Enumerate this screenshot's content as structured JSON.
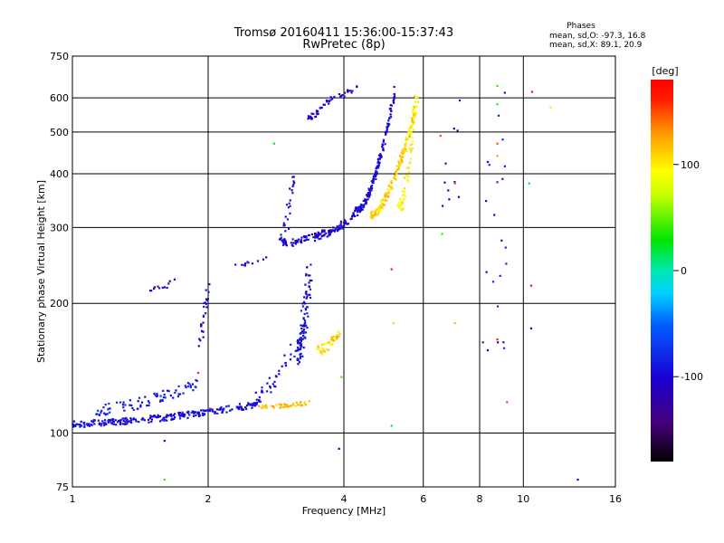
{
  "chart_data": {
    "type": "scatter",
    "title": "Tromsø 20160411 15:36:00-15:37:43",
    "subtitle": "RwPretec (8p)",
    "xlabel": "Frequency [MHz]",
    "ylabel": "Stationary phase Virtual Height [km]",
    "x_scale": "log",
    "y_scale": "log",
    "xlim": [
      1,
      16
    ],
    "ylim": [
      75,
      750
    ],
    "x_ticks": [
      "1",
      "2",
      "4",
      "6",
      "8",
      "10",
      "16"
    ],
    "y_ticks": [
      "75",
      "100",
      "200",
      "300",
      "400",
      "500",
      "600",
      "750"
    ],
    "grid": true,
    "phase_stats": {
      "heading": "Phases",
      "line_o": "mean, sd,O: -97.3, 16.8",
      "line_x": "mean, sd,X: 89.1, 20.9"
    },
    "colorbar": {
      "unit": "[deg]",
      "ticks": [
        "100",
        "0",
        "-100"
      ],
      "range": [
        -180,
        180
      ]
    },
    "segments": [
      {
        "x0": 1.0,
        "x1": 2.6,
        "y0": 105,
        "y1": 117,
        "spread": 0.035,
        "n": 260,
        "phase": -95
      },
      {
        "x0": 1.1,
        "x1": 1.9,
        "y0": 113,
        "y1": 130,
        "spread": 0.06,
        "n": 80,
        "phase": -85
      },
      {
        "x0": 1.9,
        "x1": 2.0,
        "y0": 160,
        "y1": 220,
        "spread": 0.05,
        "n": 25,
        "phase": -100
      },
      {
        "x0": 1.45,
        "x1": 1.7,
        "y0": 215,
        "y1": 225,
        "spread": 0.03,
        "n": 12,
        "phase": -100
      },
      {
        "x0": 2.5,
        "x1": 3.3,
        "y0": 120,
        "y1": 180,
        "spread": 0.08,
        "n": 40,
        "phase": -95
      },
      {
        "x0": 3.15,
        "x1": 3.35,
        "y0": 150,
        "y1": 245,
        "spread": 0.09,
        "n": 90,
        "phase": -95
      },
      {
        "x0": 2.6,
        "x1": 3.4,
        "y0": 115,
        "y1": 118,
        "spread": 0.02,
        "n": 45,
        "phase": 115
      },
      {
        "x0": 3.5,
        "x1": 3.9,
        "y0": 155,
        "y1": 170,
        "spread": 0.05,
        "n": 45,
        "phase": 110
      },
      {
        "x0": 2.9,
        "x1": 3.6,
        "y0": 275,
        "y1": 290,
        "spread": 0.04,
        "n": 70,
        "phase": -100
      },
      {
        "x0": 3.6,
        "x1": 4.3,
        "y0": 290,
        "y1": 330,
        "spread": 0.04,
        "n": 70,
        "phase": -100
      },
      {
        "x0": 4.3,
        "x1": 5.2,
        "y0": 330,
        "y1": 630,
        "spread": 0.03,
        "n": 150,
        "phase": -100
      },
      {
        "x0": 2.9,
        "x1": 3.1,
        "y0": 280,
        "y1": 400,
        "spread": 0.06,
        "n": 30,
        "phase": -100
      },
      {
        "x0": 3.3,
        "x1": 3.8,
        "y0": 540,
        "y1": 610,
        "spread": 0.03,
        "n": 35,
        "phase": -100
      },
      {
        "x0": 3.9,
        "x1": 4.3,
        "y0": 610,
        "y1": 640,
        "spread": 0.03,
        "n": 15,
        "phase": -100
      },
      {
        "x0": 4.6,
        "x1": 5.8,
        "y0": 320,
        "y1": 580,
        "spread": 0.04,
        "n": 170,
        "phase": 110
      },
      {
        "x0": 5.3,
        "x1": 5.8,
        "y0": 330,
        "y1": 640,
        "spread": 0.05,
        "n": 60,
        "phase": 95
      },
      {
        "x0": 2.3,
        "x1": 2.7,
        "y0": 245,
        "y1": 255,
        "spread": 0.02,
        "n": 12,
        "phase": -100
      },
      {
        "x0": 8.6,
        "x1": 8.75,
        "y0": 140,
        "y1": 640,
        "spread": 0.3,
        "n": 22,
        "phase": -90
      },
      {
        "x0": 6.8,
        "x1": 7.1,
        "y0": 330,
        "y1": 580,
        "spread": 0.2,
        "n": 10,
        "phase": -120
      }
    ],
    "isolated_points": [
      {
        "x": 6.55,
        "y": 490,
        "phase": 150
      },
      {
        "x": 6.6,
        "y": 290,
        "phase": 40
      },
      {
        "x": 7.05,
        "y": 380,
        "phase": 150
      },
      {
        "x": 7.05,
        "y": 180,
        "phase": 60
      },
      {
        "x": 8.75,
        "y": 640,
        "phase": 40
      },
      {
        "x": 8.75,
        "y": 580,
        "phase": 10
      },
      {
        "x": 8.75,
        "y": 470,
        "phase": 150
      },
      {
        "x": 8.75,
        "y": 440,
        "phase": 130
      },
      {
        "x": 8.75,
        "y": 165,
        "phase": 160
      },
      {
        "x": 9.2,
        "y": 118,
        "phase": 150
      },
      {
        "x": 10.4,
        "y": 220,
        "phase": 175
      },
      {
        "x": 10.4,
        "y": 175,
        "phase": -110
      },
      {
        "x": 10.45,
        "y": 620,
        "phase": 175
      },
      {
        "x": 11.5,
        "y": 570,
        "phase": 80
      },
      {
        "x": 13.2,
        "y": 78,
        "phase": -100
      },
      {
        "x": 3.9,
        "y": 92,
        "phase": -100
      },
      {
        "x": 1.6,
        "y": 96,
        "phase": -100
      },
      {
        "x": 5.1,
        "y": 240,
        "phase": 170
      },
      {
        "x": 5.1,
        "y": 104,
        "phase": 10
      },
      {
        "x": 5.15,
        "y": 180,
        "phase": 110
      },
      {
        "x": 2.8,
        "y": 470,
        "phase": 20
      },
      {
        "x": 10.3,
        "y": 380,
        "phase": 20
      },
      {
        "x": 1.6,
        "y": 78,
        "phase": 40
      },
      {
        "x": 1.9,
        "y": 138,
        "phase": 160
      },
      {
        "x": 3.95,
        "y": 135,
        "phase": 40
      }
    ]
  }
}
